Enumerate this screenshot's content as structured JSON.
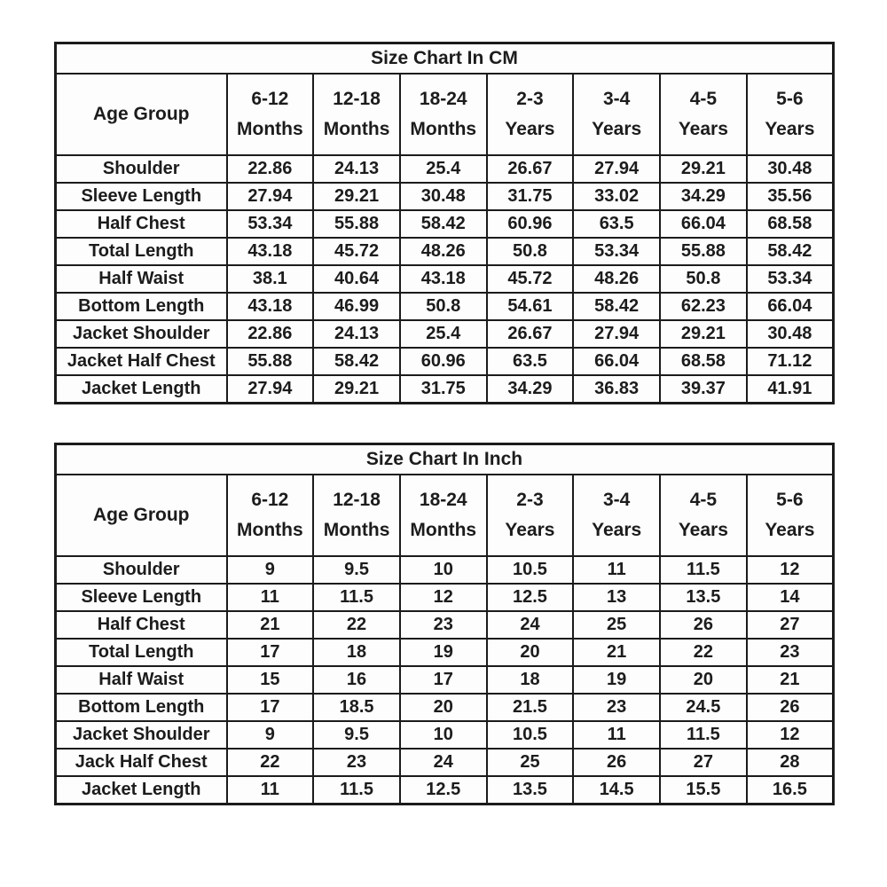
{
  "chart_data": [
    {
      "type": "table",
      "title": "Size Chart In CM",
      "corner_label": "Age Group",
      "columns": [
        [
          "6-12",
          "Months"
        ],
        [
          "12-18",
          "Months"
        ],
        [
          "18-24",
          "Months"
        ],
        [
          "2-3",
          "Years"
        ],
        [
          "3-4",
          "Years"
        ],
        [
          "4-5",
          "Years"
        ],
        [
          "5-6",
          "Years"
        ]
      ],
      "rows": [
        {
          "label": "Shoulder",
          "values": [
            "22.86",
            "24.13",
            "25.4",
            "26.67",
            "27.94",
            "29.21",
            "30.48"
          ]
        },
        {
          "label": "Sleeve Length",
          "values": [
            "27.94",
            "29.21",
            "30.48",
            "31.75",
            "33.02",
            "34.29",
            "35.56"
          ]
        },
        {
          "label": "Half Chest",
          "values": [
            "53.34",
            "55.88",
            "58.42",
            "60.96",
            "63.5",
            "66.04",
            "68.58"
          ]
        },
        {
          "label": "Total Length",
          "values": [
            "43.18",
            "45.72",
            "48.26",
            "50.8",
            "53.34",
            "55.88",
            "58.42"
          ]
        },
        {
          "label": "Half Waist",
          "values": [
            "38.1",
            "40.64",
            "43.18",
            "45.72",
            "48.26",
            "50.8",
            "53.34"
          ]
        },
        {
          "label": "Bottom Length",
          "values": [
            "43.18",
            "46.99",
            "50.8",
            "54.61",
            "58.42",
            "62.23",
            "66.04"
          ]
        },
        {
          "label": "Jacket Shoulder",
          "values": [
            "22.86",
            "24.13",
            "25.4",
            "26.67",
            "27.94",
            "29.21",
            "30.48"
          ]
        },
        {
          "label": "Jacket Half Chest",
          "values": [
            "55.88",
            "58.42",
            "60.96",
            "63.5",
            "66.04",
            "68.58",
            "71.12"
          ]
        },
        {
          "label": "Jacket Length",
          "values": [
            "27.94",
            "29.21",
            "31.75",
            "34.29",
            "36.83",
            "39.37",
            "41.91"
          ]
        }
      ]
    },
    {
      "type": "table",
      "title": "Size Chart In Inch",
      "corner_label": "Age Group",
      "columns": [
        [
          "6-12",
          "Months"
        ],
        [
          "12-18",
          "Months"
        ],
        [
          "18-24",
          "Months"
        ],
        [
          "2-3",
          "Years"
        ],
        [
          "3-4",
          "Years"
        ],
        [
          "4-5",
          "Years"
        ],
        [
          "5-6",
          "Years"
        ]
      ],
      "rows": [
        {
          "label": "Shoulder",
          "values": [
            "9",
            "9.5",
            "10",
            "10.5",
            "11",
            "11.5",
            "12"
          ]
        },
        {
          "label": "Sleeve Length",
          "values": [
            "11",
            "11.5",
            "12",
            "12.5",
            "13",
            "13.5",
            "14"
          ]
        },
        {
          "label": "Half Chest",
          "values": [
            "21",
            "22",
            "23",
            "24",
            "25",
            "26",
            "27"
          ]
        },
        {
          "label": "Total Length",
          "values": [
            "17",
            "18",
            "19",
            "20",
            "21",
            "22",
            "23"
          ]
        },
        {
          "label": "Half Waist",
          "values": [
            "15",
            "16",
            "17",
            "18",
            "19",
            "20",
            "21"
          ]
        },
        {
          "label": "Bottom Length",
          "values": [
            "17",
            "18.5",
            "20",
            "21.5",
            "23",
            "24.5",
            "26"
          ]
        },
        {
          "label": "Jacket Shoulder",
          "values": [
            "9",
            "9.5",
            "10",
            "10.5",
            "11",
            "11.5",
            "12"
          ]
        },
        {
          "label": "Jack Half Chest",
          "values": [
            "22",
            "23",
            "24",
            "25",
            "26",
            "27",
            "28"
          ]
        },
        {
          "label": "Jacket Length",
          "values": [
            "11",
            "11.5",
            "12.5",
            "13.5",
            "14.5",
            "15.5",
            "16.5"
          ]
        }
      ]
    }
  ]
}
